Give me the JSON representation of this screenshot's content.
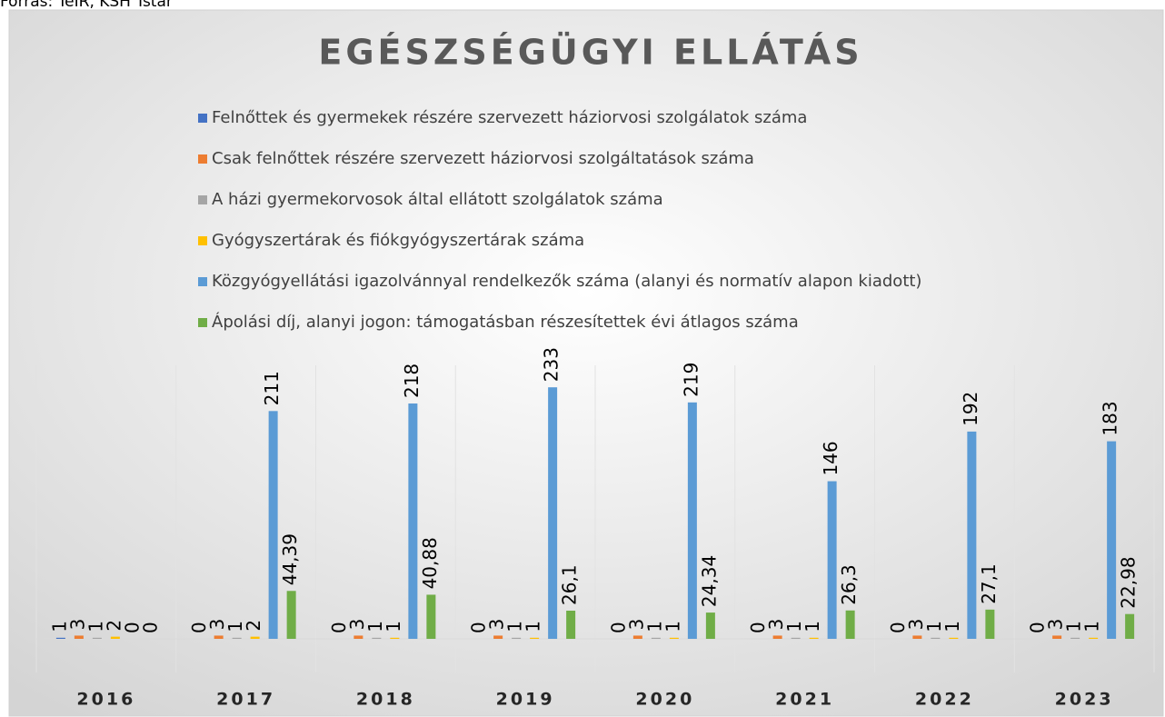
{
  "source": "Forrás: TeIR, KSH Tstar",
  "chart_data": {
    "type": "bar",
    "title": "EGÉSZSÉGÜGYI ELLÁTÁS",
    "categories": [
      "2016",
      "2017",
      "2018",
      "2019",
      "2020",
      "2021",
      "2022",
      "2023"
    ],
    "series": [
      {
        "name": "Felnőttek és gyermekek részére szervezett háziorvosi szolgálatok száma",
        "color": "#4472c4",
        "values": [
          1,
          0,
          0,
          0,
          0,
          0,
          0,
          0
        ]
      },
      {
        "name": "Csak felnőttek részére szervezett háziorvosi szolgáltatások száma",
        "color": "#ed7d31",
        "values": [
          3,
          3,
          3,
          3,
          3,
          3,
          3,
          3
        ]
      },
      {
        "name": "A házi gyermekorvosok által ellátott szolgálatok száma",
        "color": "#a5a5a5",
        "values": [
          1,
          1,
          1,
          1,
          1,
          1,
          1,
          1
        ]
      },
      {
        "name": "Gyógyszertárak és fiókgyógyszertárak száma",
        "color": "#ffc000",
        "values": [
          2,
          2,
          1,
          1,
          1,
          1,
          1,
          1
        ]
      },
      {
        "name": "Közgyógyellátási igazolvánnyal rendelkezők száma (alanyi és normatív alapon kiadott)",
        "color": "#5b9bd5",
        "values": [
          0,
          211,
          218,
          233,
          219,
          146,
          192,
          183
        ]
      },
      {
        "name": "Ápolási díj, alanyi jogon: támogatásban részesítettek évi átlagos száma",
        "color": "#70ad47",
        "values": [
          0,
          44.39,
          40.88,
          26.1,
          24.34,
          26.3,
          27.1,
          22.98
        ],
        "value_labels": [
          "0",
          "44,39",
          "40,88",
          "26,1",
          "24,34",
          "26,3",
          "27,1",
          "22,98"
        ]
      }
    ],
    "ylim": [
      0,
      250
    ],
    "grid": true
  }
}
